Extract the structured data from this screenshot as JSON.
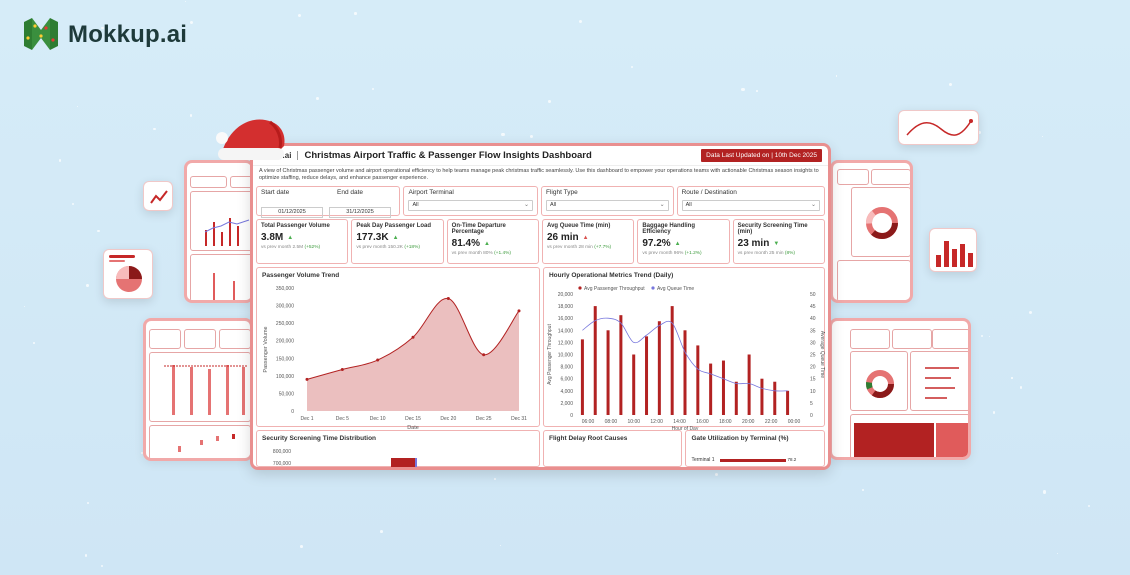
{
  "brand": {
    "name": "Mokkup.ai"
  },
  "dashboard": {
    "brand_short": "okkup.ai",
    "title": "Christmas Airport Traffic & Passenger Flow Insights Dashboard",
    "updated": "Data Last Updated on | 10th Dec 2025",
    "description": "A view of Christmas passenger volume and airport operational efficiency to help teams manage peak christmas traffic seamlessly. Use this dashboard to empower your operations teams with actionable Christmas season insights to optimize staffing, reduce delays, and enhance passenger experience.",
    "filters": {
      "start_label": "Start date",
      "start_value": "01/12/2025",
      "end_label": "End date",
      "end_value": "31/12/2025",
      "terminal_label": "Airport Terminal",
      "terminal_value": "All",
      "flight_label": "Flight Type",
      "flight_value": "All",
      "route_label": "Route / Destination",
      "route_value": "All"
    },
    "kpis": [
      {
        "label": "Total Passenger Volume",
        "value": "3.8M",
        "sub": "vs prev month 2.5M",
        "delta": "(+52%)"
      },
      {
        "label": "Peak Day Passenger Load",
        "value": "177.3K",
        "sub": "vs prev month 150.2K",
        "delta": "(+18%)"
      },
      {
        "label": "On-Time Departure Percentage",
        "value": "81.4%",
        "sub": "vs prev month 80%",
        "delta": "(+1.4%)"
      },
      {
        "label": "Avg Queue Time (min)",
        "value": "26 min",
        "sub": "vs prev month 28 min",
        "delta": "(+7.7%)"
      },
      {
        "label": "Baggage Handling Efficiency",
        "value": "97.2%",
        "sub": "vs prev month 96%",
        "delta": "(+1.2%)"
      },
      {
        "label": "Security Screening Time (min)",
        "value": "23 min",
        "sub": "vs prev month 25 min",
        "delta": "(8%)"
      }
    ],
    "panels": {
      "volume_title": "Passenger Volume Trend",
      "hourly_title": "Hourly Operational Metrics Trend (Daily)",
      "security_title": "Security Screening Time Distribution",
      "delay_title": "Flight Delay Root Causes",
      "gate_title": "Gate Utilization by Terminal (%)",
      "gate_row_label": "Terminal 1",
      "gate_row_value": "78.2"
    }
  },
  "colors": {
    "accent": "#b22222",
    "area": "#e8b4b4",
    "queue_line": "#7777dd",
    "positive": "#3c9a3c"
  },
  "chart_data": [
    {
      "type": "area",
      "title": "Passenger Volume Trend",
      "xlabel": "Date",
      "ylabel": "Passenger Volume",
      "x": [
        "Dec 1",
        "Dec 5",
        "Dec 10",
        "Dec 15",
        "Dec 20",
        "Dec 25",
        "Dec 31"
      ],
      "values": [
        90000,
        118000,
        145000,
        210000,
        320000,
        160000,
        285000
      ],
      "ylim": [
        0,
        350000
      ],
      "yticks": [
        "0",
        "50,000",
        "100,000",
        "150,000",
        "200,000",
        "250,000",
        "300,000",
        "350,000"
      ]
    },
    {
      "type": "bar",
      "title": "Hourly Operational Metrics Trend (Daily)",
      "xlabel": "Hour of Day",
      "ylabel": "Avg Passenger Throughput",
      "y2label": "Average Queue Time",
      "legend": [
        "Avg Passenger Throughput",
        "Avg Queue Time"
      ],
      "x": [
        "08:00",
        "09:00",
        "10:00",
        "11:00",
        "12:00",
        "13:00",
        "14:00",
        "15:00",
        "16:00",
        "17:00",
        "18:00",
        "19:00",
        "20:00",
        "21:00",
        "22:00",
        "23:00",
        "00:00"
      ],
      "xticks": [
        "06:00",
        "08:00",
        "10:00",
        "12:00",
        "14:00",
        "16:00",
        "18:00",
        "20:00",
        "22:00",
        "00:00"
      ],
      "series": [
        {
          "name": "Avg Passenger Throughput",
          "values": [
            12500,
            18000,
            14000,
            16500,
            10000,
            13000,
            15500,
            18000,
            14000,
            11500,
            8500,
            9000,
            5500,
            10000,
            6000,
            5500,
            4000
          ]
        },
        {
          "name": "Avg Queue Time",
          "values": [
            35,
            39,
            40,
            38,
            30,
            33,
            37,
            38,
            26,
            19,
            17,
            15,
            13,
            13,
            11,
            10,
            10
          ]
        }
      ],
      "ylim": [
        0,
        20000
      ],
      "y2lim": [
        0,
        50
      ],
      "yticks": [
        "0",
        "2,000",
        "4,000",
        "6,000",
        "8,000",
        "10,000",
        "12,000",
        "14,000",
        "16,000",
        "18,000",
        "20,000"
      ],
      "y2ticks": [
        "0",
        "5",
        "10",
        "15",
        "20",
        "25",
        "30",
        "35",
        "40",
        "45",
        "50"
      ]
    },
    {
      "type": "bar",
      "title": "Security Screening Time Distribution",
      "yticks": [
        "800,000",
        "700,000"
      ]
    }
  ]
}
